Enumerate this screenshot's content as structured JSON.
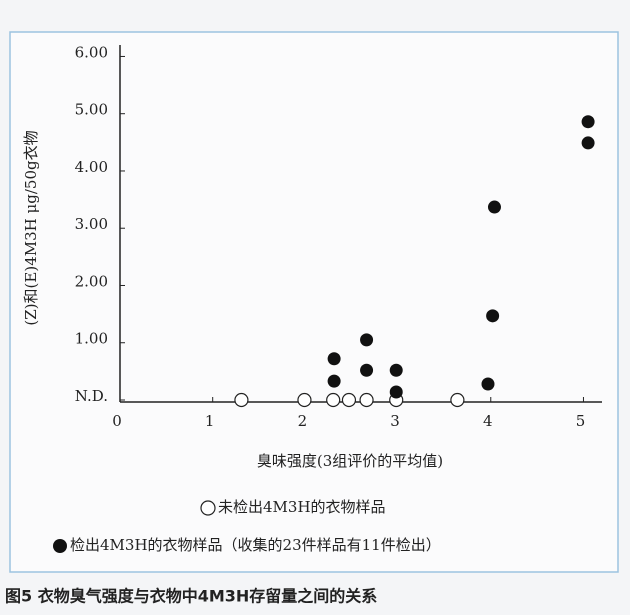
{
  "chart_data": {
    "type": "scatter",
    "x_label": "臭味强度(3组评价的平均值)",
    "y_label": "(Z)和(E)4M3H μg/50g衣物",
    "caption": "图5 衣物臭气强度与衣物中4M3H存留量之间的关系",
    "xlim": [
      0,
      5.2
    ],
    "ylim": [
      0,
      6.2
    ],
    "xticks": [
      0,
      1,
      2,
      3,
      4,
      5
    ],
    "yticks": [
      {
        "value": 0,
        "label": "N.D."
      },
      {
        "value": 1,
        "label": "1.00"
      },
      {
        "value": 2,
        "label": "2.00"
      },
      {
        "value": 3,
        "label": "3.00"
      },
      {
        "value": 4,
        "label": "4.00"
      },
      {
        "value": 5,
        "label": "5.00"
      },
      {
        "value": 6,
        "label": "6.00"
      }
    ],
    "series": [
      {
        "name": "未检出4M3H的衣物样品",
        "color": "#ffffff",
        "filled": false,
        "x": [
          1.31,
          1.99,
          2.3,
          2.47,
          2.66,
          2.98,
          3.64
        ],
        "values": [
          0,
          0,
          0,
          0,
          0,
          0,
          0
        ]
      },
      {
        "name": "检出4M3H的衣物样品（收集的23件样品有11件检出）",
        "color": "#111111",
        "filled": true,
        "x": [
          2.31,
          2.31,
          2.66,
          2.66,
          2.98,
          2.98,
          3.97,
          4.02,
          4.04,
          5.05,
          5.05
        ],
        "values": [
          0.72,
          0.33,
          1.05,
          0.52,
          0.52,
          0.14,
          0.28,
          1.47,
          3.37,
          4.86,
          4.49
        ]
      }
    ]
  }
}
